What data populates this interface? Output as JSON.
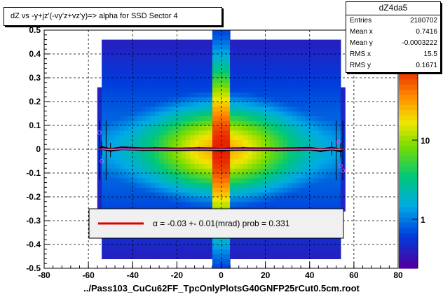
{
  "title": "dZ vs -y+jz'(-vy'z+vz'y)=> alpha for SSD Sector 4",
  "x_axis_title": "../Pass103_CuCu62FF_TpcOnlyPlotsG40GNFP25rCut0.5cm.root",
  "stats": {
    "name": "dZ4da5",
    "rows": [
      {
        "label": "Entries",
        "value": "2180702"
      },
      {
        "label": "Mean x",
        "value": "0.7416"
      },
      {
        "label": "Mean y",
        "value": "-0.0003222"
      },
      {
        "label": "RMS x",
        "value": "15.5"
      },
      {
        "label": "RMS y",
        "value": "0.1671"
      }
    ]
  },
  "legend": {
    "text": "α =    -0.03 +-     0.01(mrad) prob = 0.331",
    "line_color": "#e00000"
  },
  "chart_data": {
    "type": "heatmap",
    "title": "dZ vs -y+jz'(-vy'z+vz'y)=> alpha for SSD Sector 4",
    "xlabel": "../Pass103_CuCu62FF_TpcOnlyPlotsG40GNFP25rCut0.5cm.root",
    "ylabel": "",
    "xlim": [
      -80,
      80
    ],
    "ylim": [
      -0.5,
      0.5
    ],
    "x_ticks": [
      "-80",
      "-60",
      "-40",
      "-20",
      "0",
      "20",
      "40",
      "60",
      "80"
    ],
    "y_ticks": [
      "-0.5",
      "-0.4",
      "-0.3",
      "-0.2",
      "-0.1",
      "0",
      "0.1",
      "0.2",
      "0.3",
      "0.4",
      "0.5"
    ],
    "grid": true,
    "colorbar": {
      "scale": "log",
      "tick_labels": [
        "1",
        "10"
      ],
      "top_label": "2"
    },
    "fit_line": {
      "alpha_mrad": -0.03,
      "error_mrad": 0.01,
      "prob": 0.331,
      "color": "#e00000"
    },
    "data_extent_x": [
      -56,
      56
    ],
    "profile_points": [
      {
        "x": -54,
        "y": 0.005
      },
      {
        "x": -50,
        "y": -0.003
      },
      {
        "x": -45,
        "y": 0.004
      },
      {
        "x": -40,
        "y": 0.002
      },
      {
        "x": -35,
        "y": 0.0
      },
      {
        "x": -30,
        "y": 0.001
      },
      {
        "x": -25,
        "y": 0.0
      },
      {
        "x": -20,
        "y": -0.001
      },
      {
        "x": -15,
        "y": 0.0
      },
      {
        "x": -10,
        "y": 0.001
      },
      {
        "x": -5,
        "y": 0.0
      },
      {
        "x": 0,
        "y": -0.002
      },
      {
        "x": 5,
        "y": 0.0
      },
      {
        "x": 10,
        "y": 0.001
      },
      {
        "x": 15,
        "y": 0.0
      },
      {
        "x": 20,
        "y": 0.0
      },
      {
        "x": 25,
        "y": -0.001
      },
      {
        "x": 30,
        "y": 0.0
      },
      {
        "x": 35,
        "y": 0.001
      },
      {
        "x": 40,
        "y": 0.002
      },
      {
        "x": 45,
        "y": -0.004
      },
      {
        "x": 50,
        "y": 0.003
      },
      {
        "x": 54,
        "y": -0.005
      }
    ],
    "outlier_points": [
      {
        "x": -55,
        "y": 0.07
      },
      {
        "x": -54,
        "y": -0.05
      },
      {
        "x": 54,
        "y": -0.07
      },
      {
        "x": 55,
        "y": -0.09
      },
      {
        "x": 53,
        "y": 0.03
      }
    ]
  }
}
